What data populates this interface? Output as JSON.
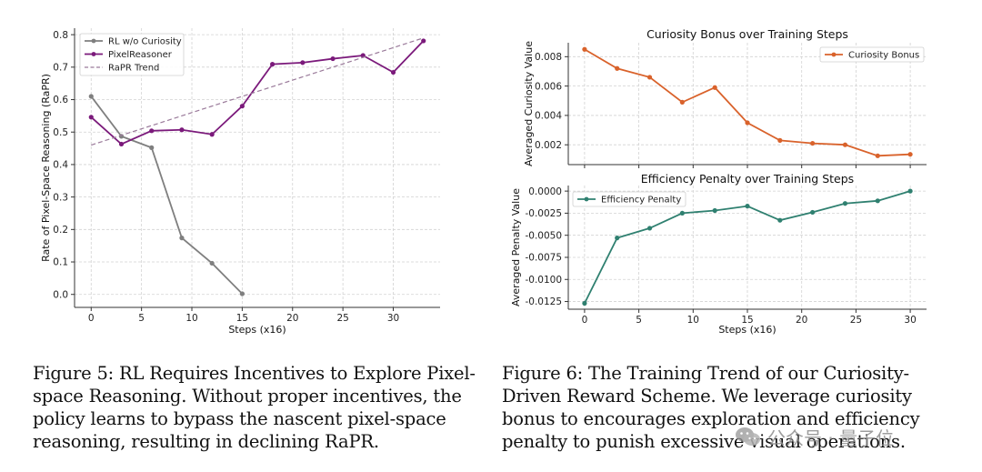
{
  "chart_data": [
    {
      "type": "line",
      "title": "",
      "xlabel": "Steps (x16)",
      "ylabel": "Rate of Pixel-Space Reasoning (RaPR)",
      "xlim": [
        -1.65,
        34.65
      ],
      "ylim": [
        -0.04,
        0.82
      ],
      "xticks": [
        0,
        5,
        10,
        15,
        20,
        25,
        30
      ],
      "yticks": [
        0.0,
        0.1,
        0.2,
        0.3,
        0.4,
        0.5,
        0.6,
        0.7,
        0.8
      ],
      "ytick_labels": [
        "0.0",
        "0.1",
        "0.2",
        "0.3",
        "0.4",
        "0.5",
        "0.6",
        "0.7",
        "0.8"
      ],
      "grid": true,
      "legend": "top-left",
      "series": [
        {
          "name": "RL w/o Curiosity",
          "color": "#7f7f7f",
          "style": "solid-marker",
          "x": [
            0,
            3,
            6,
            9,
            12,
            15
          ],
          "y": [
            0.61,
            0.487,
            0.452,
            0.174,
            0.096,
            0.002
          ]
        },
        {
          "name": "PixelReasoner",
          "color": "#7b1a7b",
          "style": "solid-marker",
          "x": [
            0,
            3,
            6,
            9,
            12,
            15,
            18,
            21,
            24,
            27,
            30,
            33
          ],
          "y": [
            0.546,
            0.463,
            0.504,
            0.507,
            0.493,
            0.58,
            0.709,
            0.714,
            0.726,
            0.736,
            0.684,
            0.781
          ]
        },
        {
          "name": "RaPR Trend",
          "color": "#9a7a9a",
          "style": "dashed",
          "x": [
            0,
            33
          ],
          "y": [
            0.46,
            0.79
          ]
        }
      ]
    },
    {
      "type": "line",
      "title": "Curiosity Bonus over Training Steps",
      "xlabel": "",
      "ylabel": "Averaged Curiosity Value",
      "xlim": [
        -1.5,
        31.5
      ],
      "ylim": [
        0.00065,
        0.00895
      ],
      "xticks": [
        0,
        5,
        10,
        15,
        20,
        25,
        30
      ],
      "yticks": [
        0.002,
        0.004,
        0.006,
        0.008
      ],
      "ytick_labels": [
        "0.002",
        "0.004",
        "0.006",
        "0.008"
      ],
      "grid": true,
      "legend": "top-right",
      "series": [
        {
          "name": "Curiosity Bonus",
          "color": "#d9622b",
          "x": [
            0,
            3,
            6,
            9,
            12,
            15,
            18,
            21,
            24,
            27,
            30
          ],
          "y": [
            0.0085,
            0.0072,
            0.0066,
            0.0049,
            0.0059,
            0.0035,
            0.0023,
            0.0021,
            0.002,
            0.00125,
            0.00135
          ]
        }
      ]
    },
    {
      "type": "line",
      "title": "Efficiency Penalty over Training Steps",
      "xlabel": "Steps (x16)",
      "ylabel": "Averaged Penalty Value",
      "xlim": [
        -1.5,
        31.5
      ],
      "ylim": [
        -0.01337,
        0.00063
      ],
      "xticks": [
        0,
        5,
        10,
        15,
        20,
        25,
        30
      ],
      "yticks": [
        -0.0125,
        -0.01,
        -0.0075,
        -0.005,
        -0.0025,
        0.0
      ],
      "ytick_labels": [
        "-0.0125",
        "-0.0100",
        "-0.0075",
        "-0.0050",
        "-0.0025",
        "0.0000"
      ],
      "grid": true,
      "legend": "top-left",
      "series": [
        {
          "name": "Efficiency Penalty",
          "color": "#2f8070",
          "x": [
            0,
            3,
            6,
            9,
            12,
            15,
            18,
            21,
            24,
            27,
            30
          ],
          "y": [
            -0.0127,
            -0.0053,
            -0.0042,
            -0.0025,
            -0.0022,
            -0.0017,
            -0.0033,
            -0.0024,
            -0.0014,
            -0.0011,
            0.0
          ]
        }
      ]
    }
  ],
  "captions": {
    "fig5_label": "Figure 5:",
    "fig5_text": "RL Requires Incentives to Explore Pixel-space Reasoning. Without proper incentives, the policy learns to bypass the nascent pixel-space reasoning, resulting in declining RaPR.",
    "fig6_label": "Figure 6:",
    "fig6_text": "The Training Trend of our Curiosity-Driven Reward Scheme. We leverage curiosity bonus to encourages exploration and efficiency penalty to punish excessive visual operations."
  },
  "watermark": {
    "text": "公众号 · 量子位",
    "icon": "wechat-icon"
  }
}
